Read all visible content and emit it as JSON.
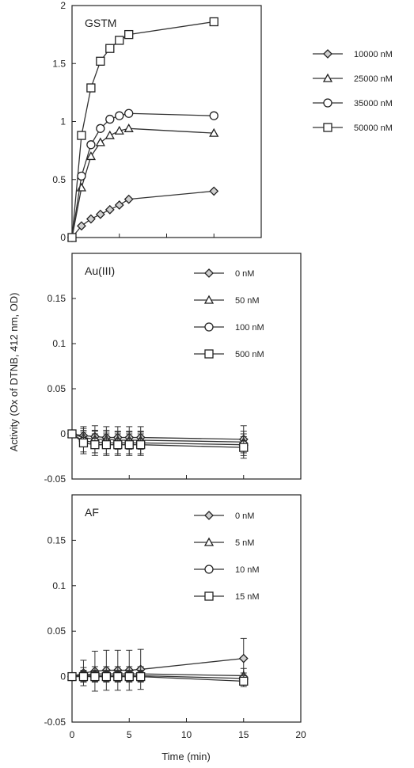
{
  "figure": {
    "ylabel": "Activity (Ox of DTNB, 412 nm, OD)",
    "xlabel": "Time (min)"
  },
  "chart_data": [
    {
      "type": "line",
      "label": "GSTM",
      "xlim": [
        0,
        20
      ],
      "ylim": [
        0,
        2
      ],
      "yticks": [
        0,
        0.5,
        1,
        1.5,
        2
      ],
      "ytick_labels": [
        "0",
        "0.5",
        "1",
        "1.5",
        "2"
      ],
      "xticks": [
        0,
        5,
        10,
        15,
        20
      ],
      "legend_position": "outside-right",
      "series": [
        {
          "name": "10000 nM",
          "marker": "diamond",
          "x": [
            0,
            1,
            2,
            3,
            4,
            5,
            6,
            15
          ],
          "y": [
            0,
            0.1,
            0.16,
            0.2,
            0.24,
            0.28,
            0.33,
            0.4
          ]
        },
        {
          "name": "25000 nM",
          "marker": "triangle",
          "x": [
            0,
            1,
            2,
            3,
            4,
            5,
            6,
            15
          ],
          "y": [
            0,
            0.43,
            0.7,
            0.82,
            0.88,
            0.92,
            0.94,
            0.9
          ]
        },
        {
          "name": "35000 nM",
          "marker": "circle",
          "x": [
            0,
            1,
            2,
            3,
            4,
            5,
            6,
            15
          ],
          "y": [
            0,
            0.53,
            0.8,
            0.94,
            1.02,
            1.05,
            1.07,
            1.05
          ]
        },
        {
          "name": "50000 nM",
          "marker": "square",
          "x": [
            0,
            1,
            2,
            3,
            4,
            5,
            6,
            15
          ],
          "y": [
            0,
            0.88,
            1.29,
            1.52,
            1.63,
            1.7,
            1.75,
            1.86
          ]
        }
      ]
    },
    {
      "type": "line",
      "label": "Au(III)",
      "xlim": [
        0,
        20
      ],
      "ylim": [
        -0.05,
        0.2
      ],
      "yticks": [
        -0.05,
        0,
        0.05,
        0.1,
        0.15
      ],
      "ytick_labels": [
        "-0.05",
        "0",
        "0.05",
        "0.1",
        "0.15"
      ],
      "xticks": [
        0,
        5,
        10,
        15,
        20
      ],
      "legend_position": "top-right",
      "series": [
        {
          "name": "0 nM",
          "marker": "diamond",
          "x": [
            0,
            1,
            2,
            3,
            4,
            5,
            6,
            15
          ],
          "y": [
            0,
            -0.002,
            -0.003,
            -0.004,
            -0.004,
            -0.004,
            -0.004,
            -0.006
          ],
          "err": [
            0.003,
            0.01,
            0.012,
            0.012,
            0.012,
            0.012,
            0.012,
            0.015
          ]
        },
        {
          "name": "50 nM",
          "marker": "triangle",
          "x": [
            0,
            1,
            2,
            3,
            4,
            5,
            6,
            15
          ],
          "y": [
            0,
            -0.004,
            -0.006,
            -0.006,
            -0.007,
            -0.007,
            -0.007,
            -0.009
          ],
          "err": [
            0.003,
            0.01,
            0.01,
            0.01,
            0.01,
            0.01,
            0.01,
            0.012
          ]
        },
        {
          "name": "100 nM",
          "marker": "circle",
          "x": [
            0,
            1,
            2,
            3,
            4,
            5,
            6,
            15
          ],
          "y": [
            0,
            -0.008,
            -0.009,
            -0.01,
            -0.01,
            -0.01,
            -0.01,
            -0.012
          ],
          "err": [
            0.003,
            0.012,
            0.012,
            0.012,
            0.012,
            0.012,
            0.012,
            0.012
          ]
        },
        {
          "name": "500 nM",
          "marker": "square",
          "x": [
            0,
            1,
            2,
            3,
            4,
            5,
            6,
            15
          ],
          "y": [
            0,
            -0.01,
            -0.012,
            -0.012,
            -0.012,
            -0.012,
            -0.012,
            -0.015
          ],
          "err": [
            0.003,
            0.012,
            0.012,
            0.012,
            0.012,
            0.012,
            0.012,
            0.012
          ]
        }
      ]
    },
    {
      "type": "line",
      "label": "AF",
      "xlim": [
        0,
        20
      ],
      "ylim": [
        -0.05,
        0.2
      ],
      "yticks": [
        -0.05,
        0,
        0.05,
        0.1,
        0.15
      ],
      "ytick_labels": [
        "-0.05",
        "0",
        "0.05",
        "0.1",
        "0.15"
      ],
      "xticks": [
        0,
        5,
        10,
        15,
        20
      ],
      "xtick_labels": [
        "0",
        "5",
        "10",
        "15",
        "20"
      ],
      "legend_position": "top-right",
      "series": [
        {
          "name": "0 nM",
          "marker": "diamond",
          "x": [
            0,
            1,
            2,
            3,
            4,
            5,
            6,
            15
          ],
          "y": [
            0,
            0.004,
            0.006,
            0.007,
            0.007,
            0.007,
            0.008,
            0.02
          ],
          "err": [
            0.003,
            0.014,
            0.022,
            0.022,
            0.022,
            0.022,
            0.022,
            0.022
          ]
        },
        {
          "name": "5 nM",
          "marker": "triangle",
          "x": [
            0,
            1,
            2,
            3,
            4,
            5,
            6,
            15
          ],
          "y": [
            0,
            0.002,
            0.003,
            0.003,
            0.003,
            0.003,
            0.003,
            0.001
          ],
          "err": [
            0.003,
            0.008,
            0.008,
            0.008,
            0.008,
            0.008,
            0.008,
            0.008
          ]
        },
        {
          "name": "10 nM",
          "marker": "circle",
          "x": [
            0,
            1,
            2,
            3,
            4,
            5,
            6,
            15
          ],
          "y": [
            0,
            0.001,
            0.001,
            0.001,
            0.001,
            0.001,
            0.001,
            -0.002
          ],
          "err": [
            0.003,
            0.006,
            0.006,
            0.006,
            0.006,
            0.006,
            0.006,
            0.006
          ]
        },
        {
          "name": "15 nM",
          "marker": "square",
          "x": [
            0,
            1,
            2,
            3,
            4,
            5,
            6,
            15
          ],
          "y": [
            0,
            0,
            0,
            0,
            0,
            0,
            0,
            -0.005
          ],
          "err": [
            0.003,
            0.006,
            0.006,
            0.006,
            0.006,
            0.006,
            0.006,
            0.006
          ]
        }
      ]
    }
  ]
}
